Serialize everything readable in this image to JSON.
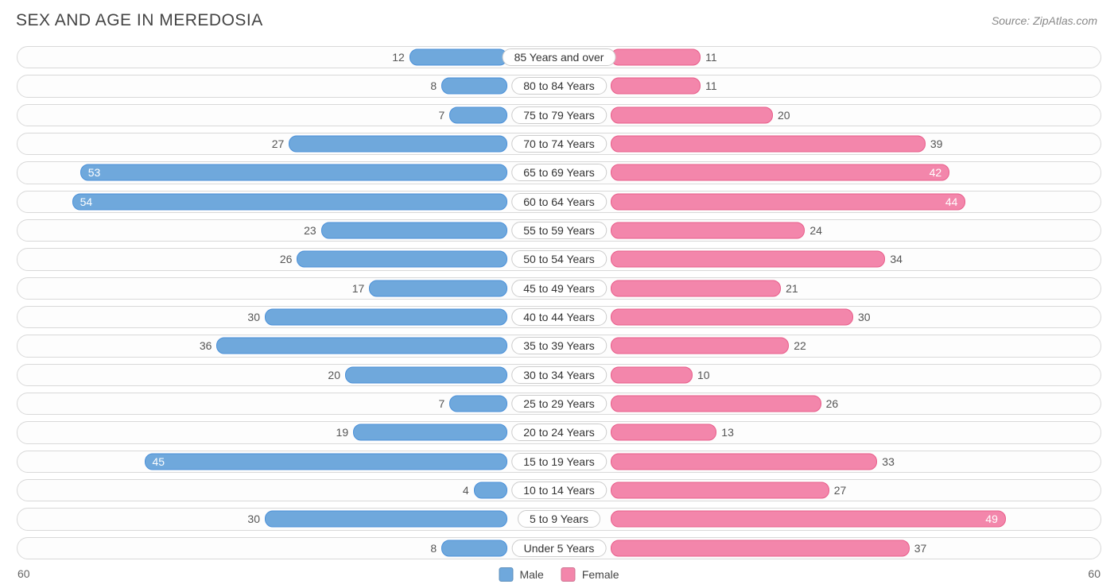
{
  "title": "SEX AND AGE IN MEREDOSIA",
  "source": "Source: ZipAtlas.com",
  "chart": {
    "type": "population-pyramid",
    "male_color": "#6fa8dc",
    "female_color": "#f386ab",
    "male_border": "#4a90d9",
    "female_border": "#e85d8a",
    "track_border": "#d9d9d9",
    "track_bg": "#fdfdfd",
    "background": "#ffffff",
    "axis_max": 60,
    "axis_label_left": "60",
    "axis_label_right": "60",
    "label_fontsize": 14,
    "title_fontsize": 21,
    "inside_label_threshold": 40,
    "legend": {
      "male": "Male",
      "female": "Female"
    },
    "rows": [
      {
        "label": "85 Years and over",
        "male": 12,
        "female": 11
      },
      {
        "label": "80 to 84 Years",
        "male": 8,
        "female": 11
      },
      {
        "label": "75 to 79 Years",
        "male": 7,
        "female": 20
      },
      {
        "label": "70 to 74 Years",
        "male": 27,
        "female": 39
      },
      {
        "label": "65 to 69 Years",
        "male": 53,
        "female": 42
      },
      {
        "label": "60 to 64 Years",
        "male": 54,
        "female": 44
      },
      {
        "label": "55 to 59 Years",
        "male": 23,
        "female": 24
      },
      {
        "label": "50 to 54 Years",
        "male": 26,
        "female": 34
      },
      {
        "label": "45 to 49 Years",
        "male": 17,
        "female": 21
      },
      {
        "label": "40 to 44 Years",
        "male": 30,
        "female": 30
      },
      {
        "label": "35 to 39 Years",
        "male": 36,
        "female": 22
      },
      {
        "label": "30 to 34 Years",
        "male": 20,
        "female": 10
      },
      {
        "label": "25 to 29 Years",
        "male": 7,
        "female": 26
      },
      {
        "label": "20 to 24 Years",
        "male": 19,
        "female": 13
      },
      {
        "label": "15 to 19 Years",
        "male": 45,
        "female": 33
      },
      {
        "label": "10 to 14 Years",
        "male": 4,
        "female": 27
      },
      {
        "label": "5 to 9 Years",
        "male": 30,
        "female": 49
      },
      {
        "label": "Under 5 Years",
        "male": 8,
        "female": 37
      }
    ]
  }
}
